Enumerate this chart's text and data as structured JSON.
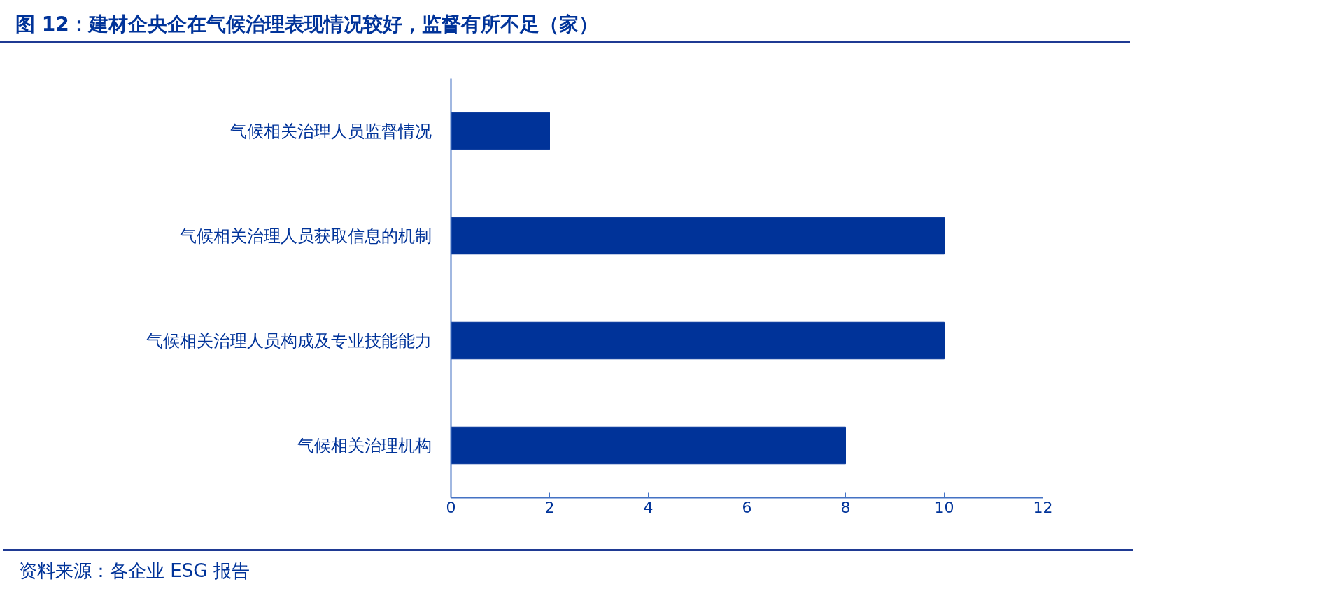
{
  "chart_data": {
    "type": "bar",
    "orientation": "horizontal",
    "title": "图 12：建材企央企在气候治理表现情况较好，监督有所不足（家）",
    "categories": [
      "气候相关治理人员监督情况",
      "气候相关治理人员获取信息的机制",
      "气候相关治理人员构成及专业技能能力",
      "气候相关治理机构"
    ],
    "values": [
      2,
      10,
      10,
      8
    ],
    "color": "#003399",
    "xlim": [
      0,
      12
    ],
    "xticks": [
      0,
      2,
      4,
      6,
      8,
      10,
      12
    ],
    "grid": false,
    "annotations": [
      "资料来源：各企业 ESG 报告"
    ]
  }
}
